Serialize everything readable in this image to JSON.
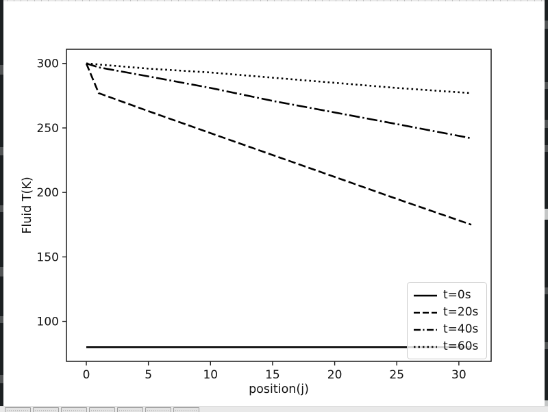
{
  "window": {
    "taskbar": {
      "buttons": [
        "",
        "",
        "",
        "",
        "",
        "",
        ""
      ]
    }
  },
  "chart_data": {
    "type": "line",
    "title": "",
    "xlabel": "position(j)",
    "ylabel": "Fluid T(K)",
    "xlim": [
      -1.6,
      32.6
    ],
    "ylim": [
      69,
      311
    ],
    "xticks": [
      0,
      5,
      10,
      15,
      20,
      25,
      30
    ],
    "yticks": [
      100,
      150,
      200,
      250,
      300
    ],
    "grid": false,
    "line_color": "#000000",
    "legend_position": "lower right",
    "series": [
      {
        "name": "t=0s",
        "linestyle": "solid",
        "x": [
          0,
          31
        ],
        "y": [
          80,
          80
        ]
      },
      {
        "name": "t=20s",
        "linestyle": "dashed",
        "x": [
          0,
          1,
          5,
          10,
          15,
          20,
          25,
          31
        ],
        "y": [
          300,
          277,
          263,
          246,
          229,
          212,
          195,
          175
        ]
      },
      {
        "name": "t=40s",
        "linestyle": "dashdot",
        "x": [
          0,
          1,
          5,
          10,
          15,
          20,
          25,
          31
        ],
        "y": [
          300,
          297,
          290,
          281,
          271,
          262,
          253,
          242
        ]
      },
      {
        "name": "t=60s",
        "linestyle": "dotted",
        "x": [
          0,
          5,
          10,
          15,
          20,
          25,
          31
        ],
        "y": [
          300,
          296,
          293,
          289,
          285,
          281,
          277
        ]
      }
    ]
  }
}
